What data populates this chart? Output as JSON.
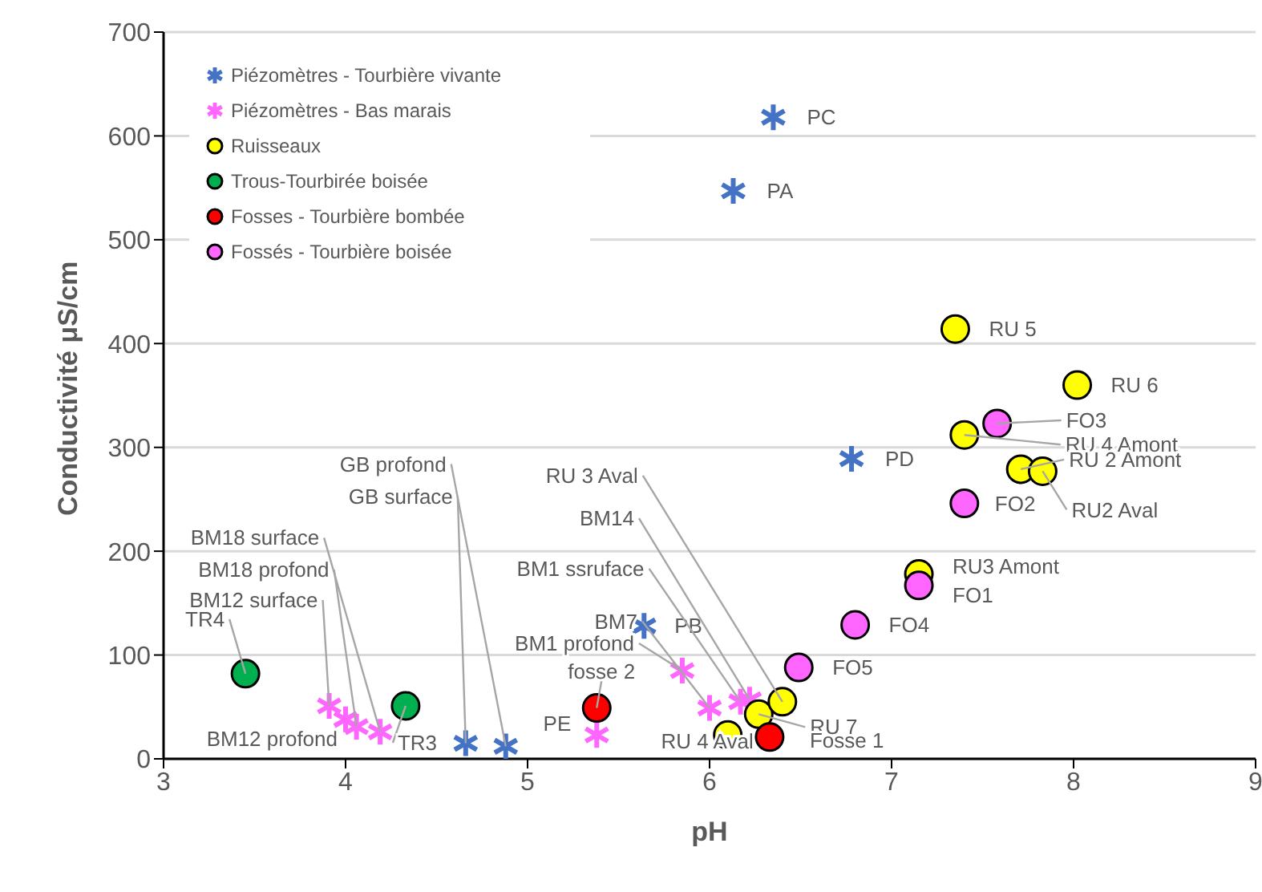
{
  "chart_data": {
    "type": "scatter",
    "xlabel": "pH",
    "ylabel": "Conductivité μS/cm",
    "xlim": [
      3,
      9
    ],
    "xticks": [
      3,
      4,
      5,
      6,
      7,
      8,
      9
    ],
    "ylim": [
      0,
      700
    ],
    "yticks": [
      0,
      100,
      200,
      300,
      400,
      500,
      600,
      700
    ],
    "grid": "y",
    "legend": "top left",
    "series": [
      {
        "name": "Piézomètres - Tourbière vivante",
        "color": "#4472c4",
        "marker": "cross",
        "x": [
          6.35,
          6.13,
          6.78,
          5.64,
          4.66,
          4.88
        ],
        "values": [
          618,
          547,
          289,
          128,
          15,
          12
        ]
      },
      {
        "name": "Piézomètres - Bas marais",
        "color": "#ff66ff",
        "marker": "cross",
        "x": [
          3.91,
          4.0,
          4.06,
          4.19,
          5.85,
          6.0,
          6.17,
          6.22,
          5.38
        ],
        "values": [
          51,
          38,
          31,
          26,
          85,
          49,
          55,
          57,
          23
        ]
      },
      {
        "name": "Ruisseaux",
        "color": "#ffff00",
        "marker": "circle",
        "x": [
          6.1,
          6.27,
          6.4,
          7.15,
          7.35,
          8.02,
          7.4,
          7.71,
          7.83
        ],
        "values": [
          23,
          43,
          55,
          178,
          414,
          360,
          312,
          279,
          277
        ]
      },
      {
        "name": "Trous-Tourbirée boisée",
        "color": "#00b050",
        "marker": "circle",
        "x": [
          3.45,
          4.33
        ],
        "values": [
          82,
          51
        ]
      },
      {
        "name": "Fosses - Tourbière bombée",
        "color": "#ff0000",
        "marker": "circle",
        "x": [
          5.38,
          6.33
        ],
        "values": [
          49,
          21
        ]
      },
      {
        "name": "Fossés - Tourbière boisée",
        "color": "#ff66ff",
        "marker": "circle",
        "x": [
          7.58,
          7.4,
          7.15,
          6.8,
          6.49
        ],
        "values": [
          323,
          246,
          167,
          129,
          88
        ]
      }
    ],
    "annotations": [
      {
        "text": "PC",
        "x": 6.35,
        "y": 618
      },
      {
        "text": "PA",
        "x": 6.13,
        "y": 547
      },
      {
        "text": "PD",
        "x": 6.78,
        "y": 289
      },
      {
        "text": "PB",
        "x": 5.64,
        "y": 128
      },
      {
        "text": "GB surface",
        "x": 4.66,
        "y": 15
      },
      {
        "text": "GB profond",
        "x": 4.88,
        "y": 12
      },
      {
        "text": "BM12 surface",
        "x": 3.91,
        "y": 51
      },
      {
        "text": "BM12 profond",
        "x": 4.0,
        "y": 38
      },
      {
        "text": "BM18 profond",
        "x": 4.06,
        "y": 31
      },
      {
        "text": "BM18 surface",
        "x": 4.19,
        "y": 26
      },
      {
        "text": "BM1 profond",
        "x": 5.85,
        "y": 85
      },
      {
        "text": "BM7",
        "x": 6.0,
        "y": 49
      },
      {
        "text": "BM1 ssruface",
        "x": 6.17,
        "y": 55
      },
      {
        "text": "BM14",
        "x": 6.22,
        "y": 57
      },
      {
        "text": "PE",
        "x": 5.38,
        "y": 23
      },
      {
        "text": "RU 4 Aval",
        "x": 6.1,
        "y": 23
      },
      {
        "text": "RU 7",
        "x": 6.27,
        "y": 43
      },
      {
        "text": "RU 3 Aval",
        "x": 6.4,
        "y": 55
      },
      {
        "text": "RU3 Amont",
        "x": 7.15,
        "y": 178
      },
      {
        "text": "RU 5",
        "x": 7.35,
        "y": 414
      },
      {
        "text": "RU 6",
        "x": 8.02,
        "y": 360
      },
      {
        "text": "RU 4 Amont",
        "x": 7.4,
        "y": 312
      },
      {
        "text": "RU 2 Amont",
        "x": 7.71,
        "y": 279
      },
      {
        "text": "RU2 Aval",
        "x": 7.83,
        "y": 277
      },
      {
        "text": "TR4",
        "x": 3.45,
        "y": 82
      },
      {
        "text": "TR3",
        "x": 4.33,
        "y": 51
      },
      {
        "text": "fosse 2",
        "x": 5.38,
        "y": 49
      },
      {
        "text": "Fosse 1",
        "x": 6.33,
        "y": 21
      },
      {
        "text": "FO3",
        "x": 7.58,
        "y": 323
      },
      {
        "text": "FO2",
        "x": 7.4,
        "y": 246
      },
      {
        "text": "FO1",
        "x": 7.15,
        "y": 167
      },
      {
        "text": "FO4",
        "x": 6.8,
        "y": 129
      },
      {
        "text": "FO5",
        "x": 6.49,
        "y": 88
      }
    ]
  }
}
